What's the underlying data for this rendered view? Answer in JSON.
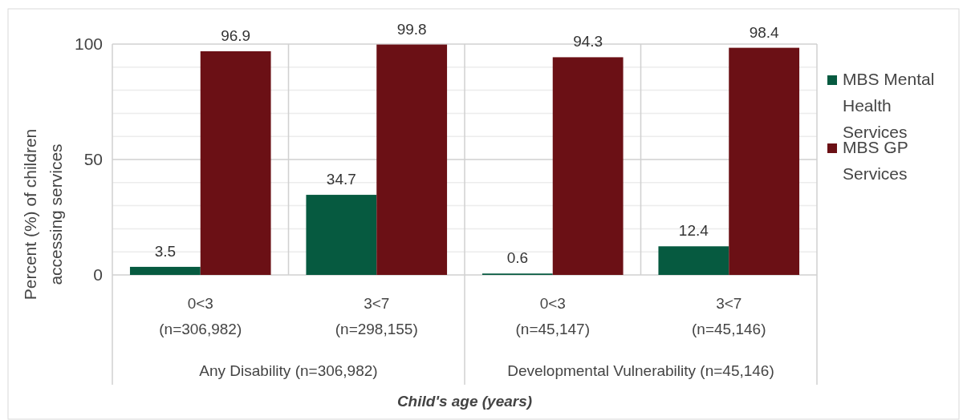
{
  "chart_data": {
    "type": "bar",
    "categories": [
      "0<3\n(n=306,982)",
      "3<7\n(n=298,155)",
      "0<3\n(n=45,147)",
      "3<7\n(n=45,146)"
    ],
    "series": [
      {
        "name": "MBS Mental Health Services",
        "color": "#065a40",
        "values": [
          3.5,
          34.7,
          0.6,
          12.4
        ]
      },
      {
        "name": "MBS GP Services",
        "color": "#6b1015",
        "values": [
          96.9,
          99.8,
          94.3,
          98.4
        ]
      }
    ],
    "ylim": [
      0,
      100
    ],
    "yticks": [
      0,
      {
        "value": 10,
        "label": null
      },
      {
        "value": 20,
        "label": null
      },
      {
        "value": 30,
        "label": null
      },
      {
        "value": 40,
        "label": null
      },
      50,
      {
        "value": 60,
        "label": null
      },
      {
        "value": 70,
        "label": null
      },
      {
        "value": 80,
        "label": null
      },
      {
        "value": 90,
        "label": null
      },
      100
    ],
    "grid": "y",
    "legend": "right",
    "data_labels": true,
    "ylabel": "Percent (%) of children accessing services",
    "xlabel": "Child's age (years)",
    "annotations": [
      "Any Disability (n=306,982)",
      "Developmental Vulnerability (n=45,146)"
    ]
  }
}
